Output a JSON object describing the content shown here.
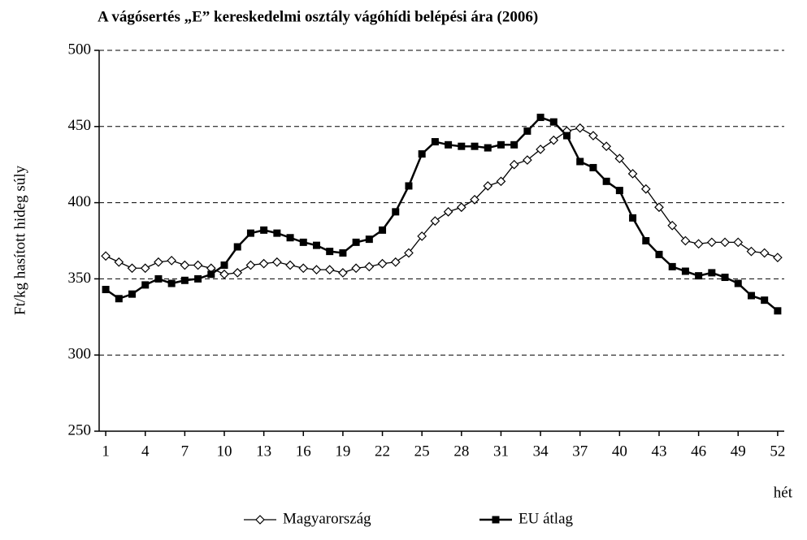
{
  "chart_data": {
    "type": "line",
    "title": "A vágósertés „E” kereskedelmi osztály vágóhídi belépési ára (2006)",
    "y_label": "Ft/kg hasított hideg súly",
    "x_label": "hét",
    "x": [
      1,
      2,
      3,
      4,
      5,
      6,
      7,
      8,
      9,
      10,
      11,
      12,
      13,
      14,
      15,
      16,
      17,
      18,
      19,
      20,
      21,
      22,
      23,
      24,
      25,
      26,
      27,
      28,
      29,
      30,
      31,
      32,
      33,
      34,
      35,
      36,
      37,
      38,
      39,
      40,
      41,
      42,
      43,
      44,
      45,
      46,
      47,
      48,
      49,
      50,
      51,
      52
    ],
    "xlim": [
      0.5,
      52.5
    ],
    "xticks": [
      1,
      4,
      7,
      10,
      13,
      16,
      19,
      22,
      25,
      28,
      31,
      34,
      37,
      40,
      43,
      46,
      49,
      52
    ],
    "ylim": [
      250,
      500
    ],
    "yticks": [
      250,
      300,
      350,
      400,
      450,
      500
    ],
    "grid": true,
    "series": [
      {
        "name": "Magyarország",
        "color": "#000000",
        "marker": "diamond",
        "values": [
          365,
          361,
          357,
          357,
          361,
          362,
          359,
          359,
          357,
          353,
          354,
          359,
          360,
          361,
          359,
          357,
          356,
          356,
          354,
          357,
          358,
          360,
          361,
          367,
          378,
          388,
          394,
          397,
          402,
          411,
          414,
          425,
          428,
          435,
          441,
          447,
          449,
          444,
          437,
          429,
          419,
          409,
          397,
          385,
          375,
          373,
          374,
          374,
          374,
          368,
          367,
          364
        ]
      },
      {
        "name": "EU átlag",
        "color": "#000000",
        "marker": "square",
        "values": [
          343,
          337,
          340,
          346,
          350,
          347,
          349,
          350,
          353,
          359,
          371,
          380,
          382,
          380,
          377,
          374,
          372,
          368,
          367,
          374,
          376,
          382,
          394,
          411,
          432,
          440,
          438,
          437,
          437,
          436,
          438,
          438,
          447,
          456,
          453,
          444,
          427,
          423,
          414,
          408,
          390,
          375,
          366,
          358,
          355,
          352,
          354,
          351,
          347,
          339,
          336,
          329
        ]
      }
    ]
  }
}
